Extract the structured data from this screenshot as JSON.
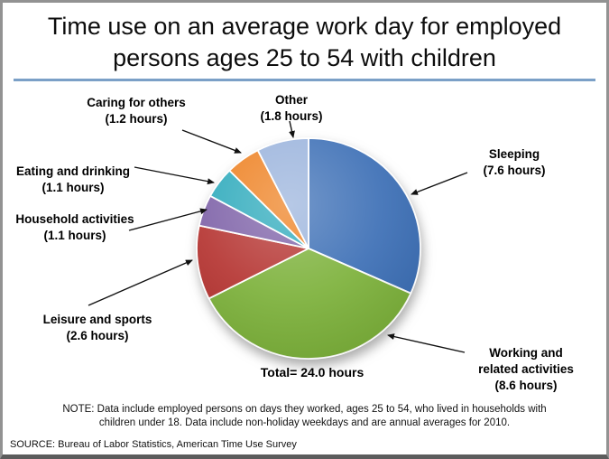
{
  "title": {
    "line1": "Time use on an average work day for employed",
    "line2": "persons ages 25 to 54 with children"
  },
  "callouts": {
    "other": {
      "line1": "Other",
      "line2": "(1.8 hours)"
    },
    "caring": {
      "line1": "Caring for others",
      "line2": "(1.2 hours)"
    },
    "eating": {
      "line1": "Eating and drinking",
      "line2": "(1.1 hours)"
    },
    "household": {
      "line1": "Household activities",
      "line2": "(1.1 hours)"
    },
    "leisure": {
      "line1": "Leisure and sports",
      "line2": "(2.6 hours)"
    },
    "sleeping": {
      "line1": "Sleeping",
      "line2": "(7.6 hours)"
    },
    "working": {
      "line1": "Working and",
      "line2": "related activities",
      "line3": "(8.6 hours)"
    }
  },
  "total_label": "Total= 24.0 hours",
  "note": "NOTE: Data include employed persons on days they worked, ages 25 to 54, who lived in households with children under 18. Data include non-holiday weekdays and are annual averages for 2010.",
  "source": "SOURCE: Bureau of Labor Statistics, American Time Use Survey",
  "colors": {
    "divider": "#7BA0C7",
    "arrow": "#111111"
  },
  "chart_data": {
    "type": "pie",
    "title": "Time use on an average work day for employed persons ages 25 to 54 with children",
    "total_hours": 24.0,
    "units": "hours",
    "start_angle_deg": 0,
    "direction": "clockwise",
    "slices": [
      {
        "label": "Sleeping",
        "value": 7.6,
        "color": "#3B6EB5"
      },
      {
        "label": "Working and related activities",
        "value": 8.6,
        "color": "#7CB13A"
      },
      {
        "label": "Leisure and sports",
        "value": 2.6,
        "color": "#B53431"
      },
      {
        "label": "Household activities",
        "value": 1.1,
        "color": "#7E62A8"
      },
      {
        "label": "Eating and drinking",
        "value": 1.1,
        "color": "#2EAABC"
      },
      {
        "label": "Caring for others",
        "value": 1.2,
        "color": "#EE8122"
      },
      {
        "label": "Other",
        "value": 1.8,
        "color": "#9AB3DC"
      }
    ]
  }
}
